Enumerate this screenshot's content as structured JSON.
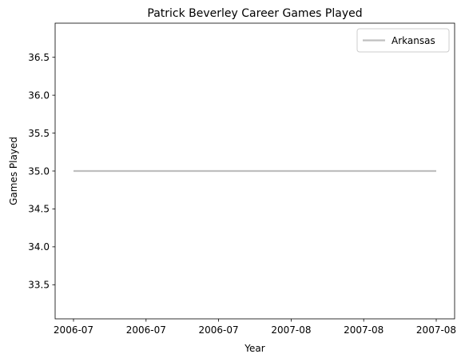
{
  "chart_data": {
    "type": "line",
    "title": "Patrick Beverley Career Games Played",
    "xlabel": "Year",
    "ylabel": "Games Played",
    "x_tick_labels": [
      "2006-07",
      "2006-07",
      "2006-07",
      "2007-08",
      "2007-08",
      "2007-08"
    ],
    "y_ticks": [
      33.5,
      34.0,
      34.5,
      35.0,
      35.5,
      36.0,
      36.5
    ],
    "ylim": [
      33.05,
      36.95
    ],
    "grid": false,
    "legend_position": "top-right",
    "series": [
      {
        "name": "Arkansas",
        "color": "#bfbfbf",
        "x": [
          "2006-07",
          "2007-08"
        ],
        "values": [
          35,
          35
        ]
      }
    ]
  }
}
